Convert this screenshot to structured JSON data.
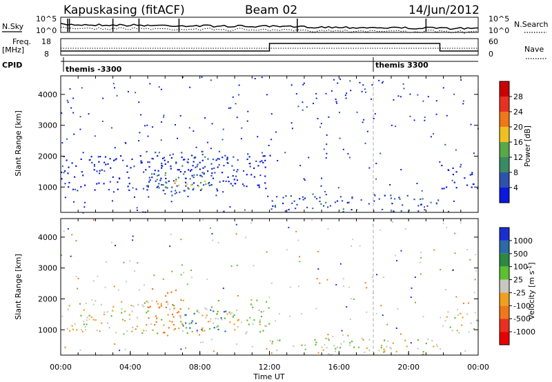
{
  "header": {
    "station": "Kapuskasing (fitACF)",
    "beam": "Beam 02",
    "date": "14/Jun/2012"
  },
  "panel_labels": {
    "nsky": "N.Sky",
    "nsearch": "N.Search",
    "freq_top": "Freq.",
    "freq_unit": "[MHz]",
    "nave": "Nave",
    "cpid": "CPID",
    "nsky_ticks": [
      "10^5",
      "10^0"
    ],
    "nsearch_ticks": [
      "10^5",
      "10^0"
    ],
    "freq_ticks": [
      "18",
      "8"
    ],
    "nave_ticks": [
      "60",
      "0"
    ],
    "cpid_events": [
      {
        "time_h": 0.2,
        "label": "themis -3300"
      },
      {
        "time_h": 18.0,
        "label": "themis 3300"
      }
    ]
  },
  "chart_data": [
    {
      "type": "heatmap",
      "name": "power",
      "ylabel": "Slant Range [km]",
      "xlabel": "",
      "xlim_hours": [
        0,
        24
      ],
      "ylim_km": [
        180,
        4600
      ],
      "yticks": [
        "1000",
        "2000",
        "3000",
        "4000"
      ],
      "ytick_values": [
        1000,
        2000,
        3000,
        4000
      ],
      "colorbar": {
        "label": "Power [dB]",
        "ticks": [
          "4",
          "8",
          "12",
          "16",
          "20",
          "24",
          "28"
        ],
        "colors": [
          "#0a18e0",
          "#2d52ae",
          "#3a8a62",
          "#58a848",
          "#f0c020",
          "#f07818",
          "#e83020",
          "#cc0000"
        ]
      },
      "regions": [
        {
          "t0": 0.0,
          "t1": 12.0,
          "r0": 900,
          "r1": 2050,
          "value_db": 4
        },
        {
          "t0": 4.5,
          "t1": 9.6,
          "r0": 750,
          "r1": 2200,
          "value_db": 8
        },
        {
          "t0": 5.5,
          "t1": 8.8,
          "r0": 900,
          "r1": 1500,
          "value_db": 12
        },
        {
          "t0": 6.0,
          "t1": 8.4,
          "r0": 950,
          "r1": 1300,
          "value_db": 20
        },
        {
          "t0": 12.0,
          "t1": 21.8,
          "r0": 200,
          "r1": 800,
          "value_db": 8
        },
        {
          "t0": 21.8,
          "t1": 24.0,
          "r0": 900,
          "r1": 1800,
          "value_db": 4
        }
      ]
    },
    {
      "type": "heatmap",
      "name": "velocity",
      "ylabel": "Slant Range [km]",
      "xlabel": "Time UT",
      "xlim_hours": [
        0,
        24
      ],
      "ylim_km": [
        180,
        4600
      ],
      "yticks": [
        "1000",
        "2000",
        "3000",
        "4000"
      ],
      "ytick_values": [
        1000,
        2000,
        3000,
        4000
      ],
      "xticks": [
        "00:00",
        "04:00",
        "08:00",
        "12:00",
        "16:00",
        "20:00",
        "00:00"
      ],
      "xtick_values": [
        0,
        4,
        8,
        12,
        16,
        20,
        24
      ],
      "colorbar": {
        "label": "Velocity [m s^-1]",
        "ticks": [
          "1000",
          "500",
          "100",
          "25",
          "-25",
          "-100",
          "-500",
          "-1000"
        ],
        "colors": [
          "#1a2ed0",
          "#2c6aa8",
          "#2c8a40",
          "#5cc030",
          "#c8c8c0",
          "#f0a020",
          "#f07818",
          "#e83020",
          "#e80000"
        ]
      },
      "regions": [
        {
          "t0": 0.0,
          "t1": 12.0,
          "r0": 900,
          "r1": 2000,
          "value_ms": 0
        },
        {
          "t0": 5.0,
          "t1": 7.0,
          "r0": 900,
          "r1": 2400,
          "value_ms": -150
        },
        {
          "t0": 7.0,
          "t1": 9.5,
          "r0": 950,
          "r1": 1700,
          "value_ms": 150
        },
        {
          "t0": 12.0,
          "t1": 22.0,
          "r0": 200,
          "r1": 750,
          "value_ms": 0
        },
        {
          "t0": 21.8,
          "t1": 24.0,
          "r0": 900,
          "r1": 1600,
          "value_ms": 0
        }
      ]
    }
  ]
}
